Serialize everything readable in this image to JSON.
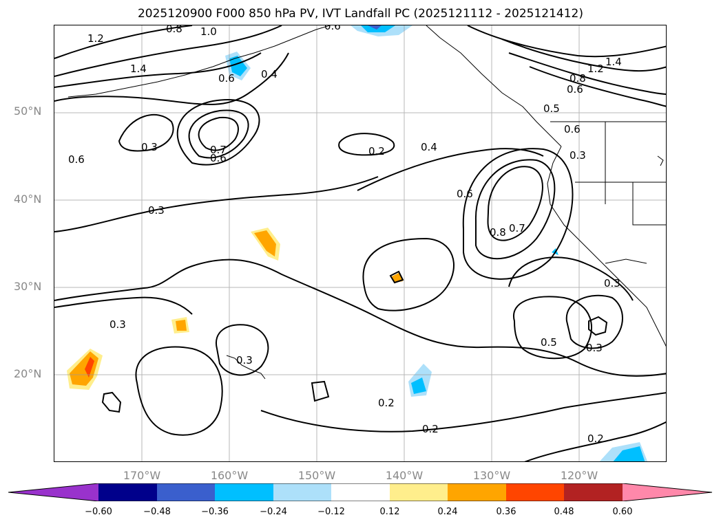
{
  "title": "2025120900 F000 850 hPa PV, IVT Landfall PC (2025121112 - 2025121412)",
  "lat_labels": [
    "50°N",
    "40°N",
    "30°N",
    "20°N"
  ],
  "lon_labels": [
    "170°W",
    "160°W",
    "150°W",
    "140°W",
    "130°W",
    "120°W"
  ],
  "colorbar": {
    "ticks": [
      "−0.60",
      "−0.48",
      "−0.36",
      "−0.24",
      "−0.12",
      "0.12",
      "0.24",
      "0.36",
      "0.48",
      "0.60"
    ],
    "colors": [
      "#9932CC",
      "#00008B",
      "#3A5FCD",
      "#00BFFF",
      "#ADE0FA",
      "#FFFFFF",
      "#FFEE8C",
      "#FFA500",
      "#FF4500",
      "#B22222",
      "#FF88AA"
    ]
  },
  "contour_labels": [
    {
      "text": "1.2"
    },
    {
      "text": "0.8"
    },
    {
      "text": "1.0"
    },
    {
      "text": "0.6"
    },
    {
      "text": "1.4"
    },
    {
      "text": "0.6"
    },
    {
      "text": "0.4"
    },
    {
      "text": "0.6"
    },
    {
      "text": "0.3"
    },
    {
      "text": "0.7"
    },
    {
      "text": "0.6"
    },
    {
      "text": "0.2"
    },
    {
      "text": "0.4"
    },
    {
      "text": "0.3"
    },
    {
      "text": "0.6"
    },
    {
      "text": "0.8"
    },
    {
      "text": "0.7"
    },
    {
      "text": "0.5"
    },
    {
      "text": "0.6"
    },
    {
      "text": "0.3"
    },
    {
      "text": "1.2"
    },
    {
      "text": "1.4"
    },
    {
      "text": "0.8"
    },
    {
      "text": "0.6"
    },
    {
      "text": "0.3"
    },
    {
      "text": "0.3"
    },
    {
      "text": "0.3"
    },
    {
      "text": "0.2"
    },
    {
      "text": "0.2"
    },
    {
      "text": "0.5"
    },
    {
      "text": "0.3"
    },
    {
      "text": "0.2"
    }
  ]
}
